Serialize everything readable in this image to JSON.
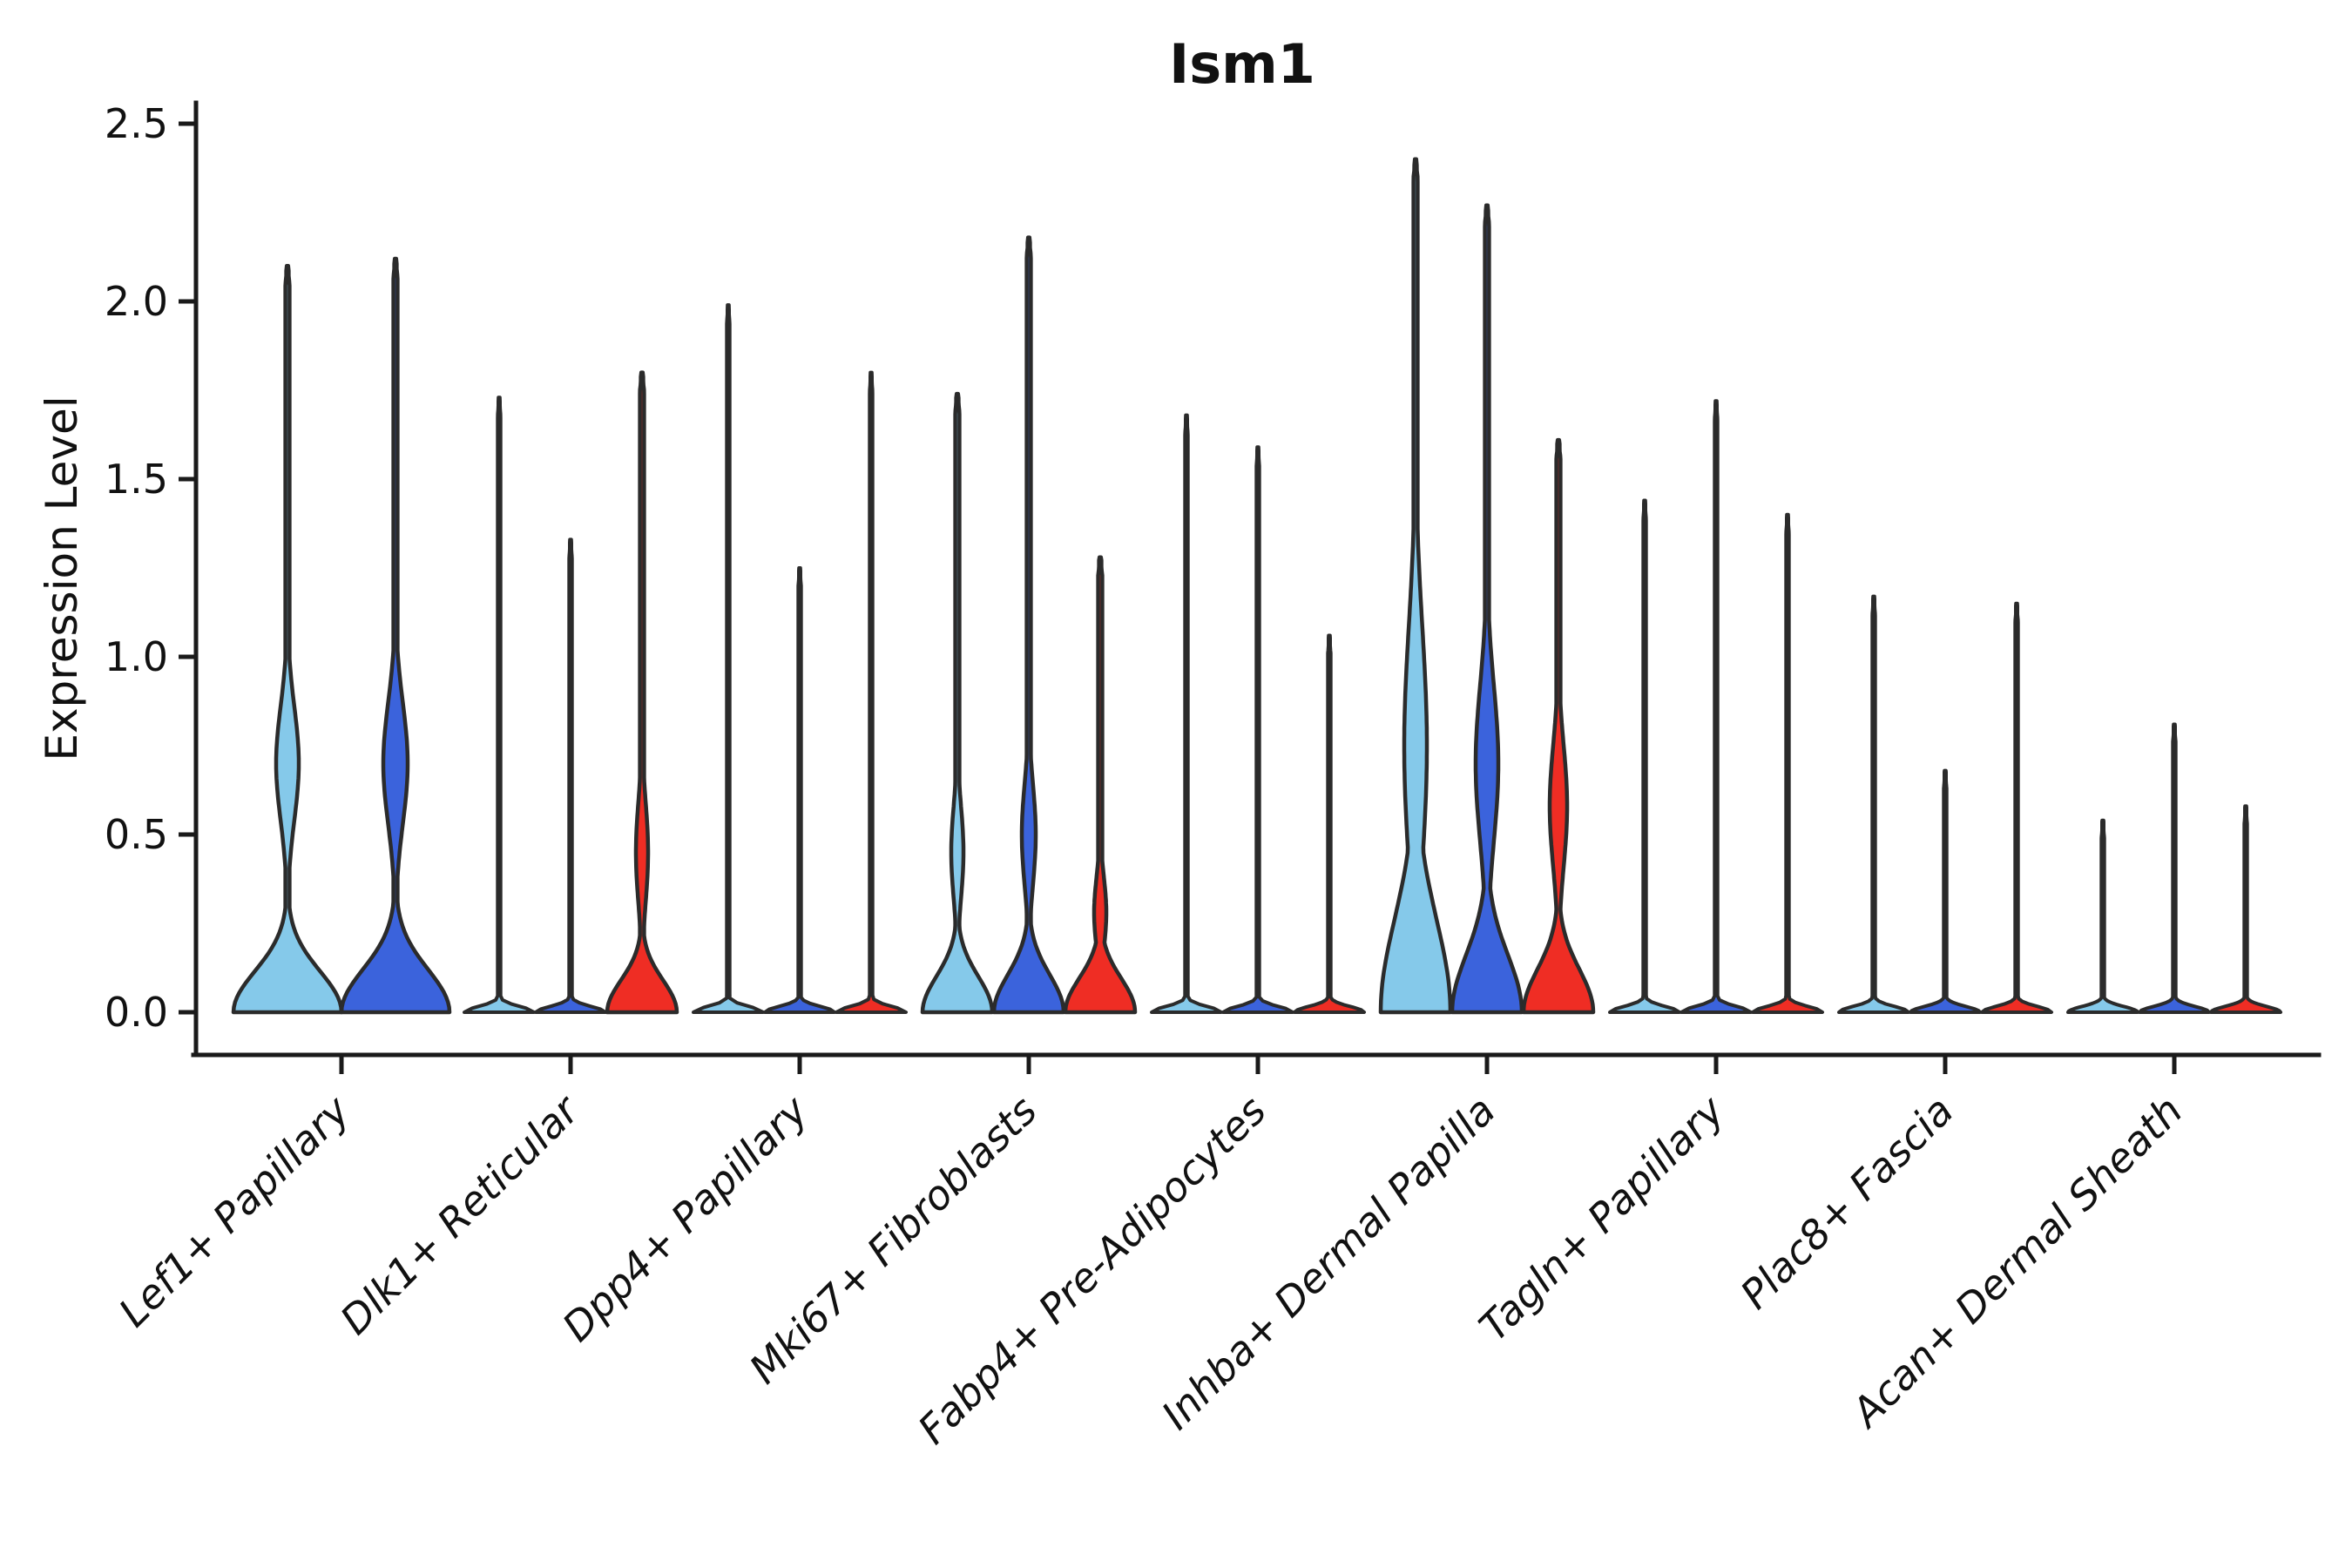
{
  "title": "Ism1",
  "ylabel": "Expression Level",
  "colors": {
    "light_blue": "#85C9EA",
    "dark_blue": "#3B63DC",
    "red": "#EF2D24",
    "outline": "#2B2B2B",
    "axis": "#1A1A1A",
    "text": "#111111",
    "background": "#FFFFFF"
  },
  "yaxis": {
    "label": "Expression Level",
    "ticks": [
      "0.0",
      "0.5",
      "1.0",
      "1.5",
      "2.0",
      "2.5"
    ],
    "tick_values": [
      0.0,
      0.5,
      1.0,
      1.5,
      2.0,
      2.5
    ],
    "range": [
      0.0,
      2.5
    ]
  },
  "chart_data": {
    "type": "violin",
    "title": "Ism1",
    "xlabel": "",
    "ylabel": "Expression Level",
    "ylim": [
      0.0,
      2.5
    ],
    "legend": "none",
    "grid": false,
    "split_colors": [
      "light_blue",
      "dark_blue",
      "red"
    ],
    "categories": [
      "Lef1+ Papillary",
      "Dlk1+ Reticular",
      "Dpp4+ Papillary",
      "Mki67+ Fibroblasts",
      "Fabp4+ Pre-Adipocytes",
      "Inhba+ Dermal Papilla",
      "Tagln+ Papillary",
      "Plac8+ Fascia",
      "Acan+ Dermal Sheath"
    ],
    "groups": [
      {
        "category": "Lef1+ Papillary",
        "violins": [
          {
            "color": "light_blue",
            "max": 2.1,
            "style": "filled",
            "bump_spread": 0.115,
            "bulge": {
              "center": 0.7,
              "spread": 0.16,
              "width": 13
            }
          },
          {
            "color": "dark_blue",
            "max": 2.12,
            "style": "filled",
            "bump_spread": 0.12,
            "bulge": {
              "center": 0.7,
              "spread": 0.17,
              "width": 14
            }
          }
        ]
      },
      {
        "category": "Dlk1+ Reticular",
        "violins": [
          {
            "color": "light_blue",
            "max": 1.73,
            "style": "thin"
          },
          {
            "color": "dark_blue",
            "max": 1.33,
            "style": "thin"
          },
          {
            "color": "red",
            "max": 1.8,
            "style": "filled",
            "bump_spread": 0.09,
            "bulge": {
              "center": 0.45,
              "spread": 0.14,
              "width": 7
            }
          }
        ]
      },
      {
        "category": "Dpp4+ Papillary",
        "violins": [
          {
            "color": "light_blue",
            "max": 1.99,
            "style": "thin"
          },
          {
            "color": "dark_blue",
            "max": 1.25,
            "style": "thin"
          },
          {
            "color": "red",
            "max": 1.8,
            "style": "thin"
          }
        ]
      },
      {
        "category": "Mki67+ Fibroblasts",
        "violins": [
          {
            "color": "light_blue",
            "max": 1.74,
            "style": "filled",
            "bump_spread": 0.1,
            "bulge": {
              "center": 0.45,
              "spread": 0.13,
              "width": 7
            }
          },
          {
            "color": "dark_blue",
            "max": 2.18,
            "style": "filled",
            "bump_spread": 0.105,
            "bulge": {
              "center": 0.5,
              "spread": 0.14,
              "width": 8
            }
          },
          {
            "color": "red",
            "max": 1.28,
            "style": "filled",
            "bump_spread": 0.095,
            "bulge": {
              "center": 0.28,
              "spread": 0.1,
              "width": 7
            }
          }
        ]
      },
      {
        "category": "Fabp4+ Pre-Adipocytes",
        "violins": [
          {
            "color": "light_blue",
            "max": 1.68,
            "style": "thin"
          },
          {
            "color": "dark_blue",
            "max": 1.59,
            "style": "thin"
          },
          {
            "color": "red",
            "max": 1.06,
            "style": "thin"
          }
        ]
      },
      {
        "category": "Inhba+ Dermal Papilla",
        "violins": [
          {
            "color": "light_blue",
            "max": 2.4,
            "style": "filled",
            "bump_spread": 0.26,
            "bulge": {
              "center": 0.75,
              "spread": 0.33,
              "width": 13
            }
          },
          {
            "color": "dark_blue",
            "max": 2.27,
            "style": "filled",
            "bump_spread": 0.16,
            "bulge": {
              "center": 0.7,
              "spread": 0.22,
              "width": 13
            }
          },
          {
            "color": "red",
            "max": 1.61,
            "style": "filled",
            "bump_spread": 0.12,
            "bulge": {
              "center": 0.58,
              "spread": 0.17,
              "width": 10
            }
          }
        ]
      },
      {
        "category": "Tagln+ Papillary",
        "violins": [
          {
            "color": "light_blue",
            "max": 1.44,
            "style": "thin"
          },
          {
            "color": "dark_blue",
            "max": 1.72,
            "style": "thin"
          },
          {
            "color": "red",
            "max": 1.4,
            "style": "thin"
          }
        ]
      },
      {
        "category": "Plac8+ Fascia",
        "violins": [
          {
            "color": "light_blue",
            "max": 1.17,
            "style": "thin"
          },
          {
            "color": "dark_blue",
            "max": 0.68,
            "style": "thin"
          },
          {
            "color": "red",
            "max": 1.15,
            "style": "thin"
          }
        ]
      },
      {
        "category": "Acan+ Dermal Sheath",
        "violins": [
          {
            "color": "light_blue",
            "max": 0.54,
            "style": "thin"
          },
          {
            "color": "dark_blue",
            "max": 0.81,
            "style": "thin"
          },
          {
            "color": "red",
            "max": 0.58,
            "style": "thin"
          }
        ]
      }
    ]
  }
}
